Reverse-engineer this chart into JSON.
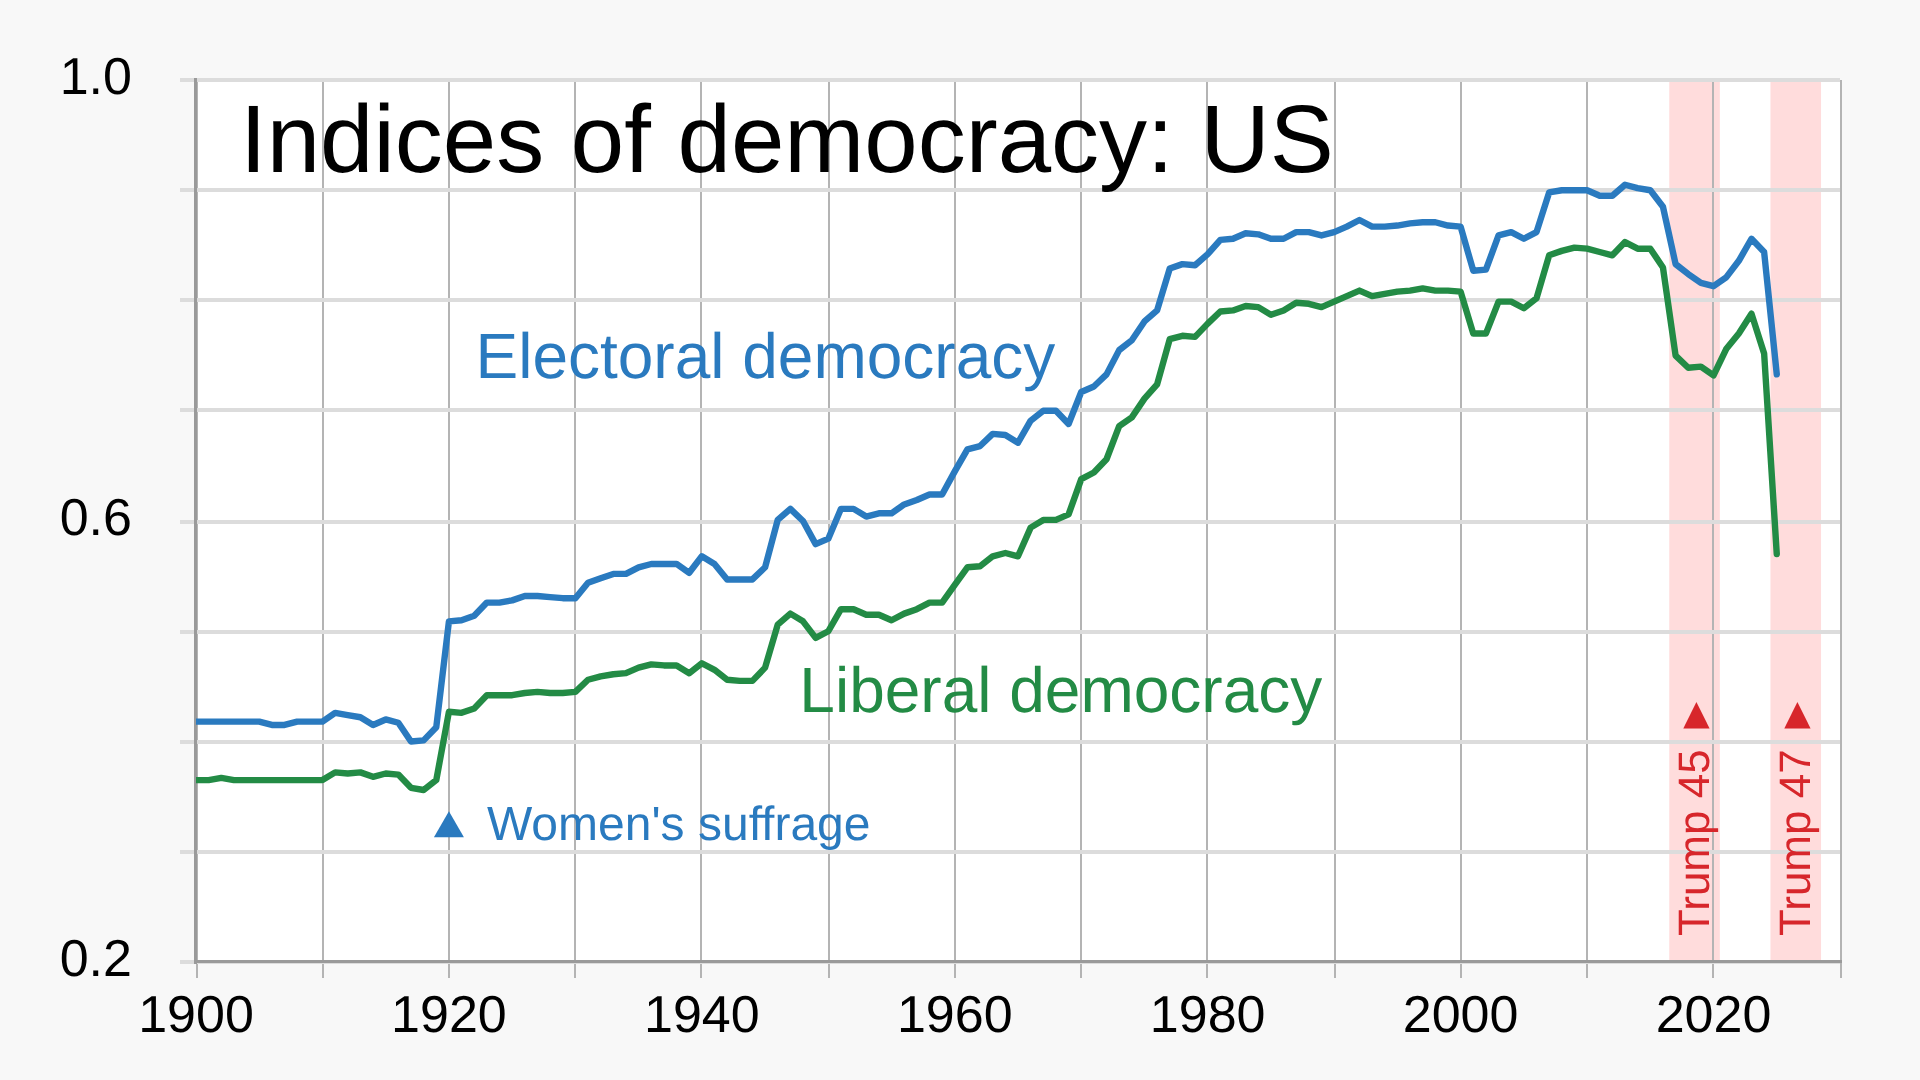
{
  "chart_data": {
    "type": "line",
    "title": "Indices of democracy: US",
    "x": [
      1900,
      1901,
      1902,
      1903,
      1904,
      1905,
      1906,
      1907,
      1908,
      1909,
      1910,
      1911,
      1912,
      1913,
      1914,
      1915,
      1916,
      1917,
      1918,
      1919,
      1920,
      1921,
      1922,
      1923,
      1924,
      1925,
      1926,
      1927,
      1928,
      1929,
      1930,
      1931,
      1932,
      1933,
      1934,
      1935,
      1936,
      1937,
      1938,
      1939,
      1940,
      1941,
      1942,
      1943,
      1944,
      1945,
      1946,
      1947,
      1948,
      1949,
      1950,
      1951,
      1952,
      1953,
      1954,
      1955,
      1956,
      1957,
      1958,
      1959,
      1960,
      1961,
      1962,
      1963,
      1964,
      1965,
      1966,
      1967,
      1968,
      1969,
      1970,
      1971,
      1972,
      1973,
      1974,
      1975,
      1976,
      1977,
      1978,
      1979,
      1980,
      1981,
      1982,
      1983,
      1984,
      1985,
      1986,
      1987,
      1988,
      1989,
      1990,
      1991,
      1992,
      1993,
      1994,
      1995,
      1996,
      1997,
      1998,
      1999,
      2000,
      2001,
      2002,
      2003,
      2004,
      2005,
      2006,
      2007,
      2008,
      2009,
      2010,
      2011,
      2012,
      2013,
      2014,
      2015,
      2016,
      2017,
      2018,
      2019,
      2020,
      2021,
      2022,
      2023,
      2024,
      2025
    ],
    "series": [
      {
        "name": "Electoral democracy",
        "color": "#2a7abf",
        "values": [
          0.418,
          0.418,
          0.418,
          0.418,
          0.418,
          0.418,
          0.415,
          0.415,
          0.418,
          0.418,
          0.418,
          0.426,
          0.424,
          0.422,
          0.415,
          0.42,
          0.417,
          0.4,
          0.401,
          0.413,
          0.509,
          0.51,
          0.514,
          0.526,
          0.526,
          0.528,
          0.532,
          0.532,
          0.531,
          0.53,
          0.53,
          0.544,
          0.548,
          0.552,
          0.552,
          0.558,
          0.561,
          0.561,
          0.561,
          0.553,
          0.568,
          0.561,
          0.547,
          0.547,
          0.547,
          0.558,
          0.601,
          0.611,
          0.6,
          0.579,
          0.584,
          0.611,
          0.611,
          0.604,
          0.607,
          0.607,
          0.615,
          0.619,
          0.624,
          0.624,
          0.645,
          0.665,
          0.668,
          0.679,
          0.678,
          0.671,
          0.691,
          0.7,
          0.7,
          0.688,
          0.717,
          0.722,
          0.733,
          0.755,
          0.764,
          0.781,
          0.791,
          0.829,
          0.833,
          0.832,
          0.842,
          0.855,
          0.856,
          0.861,
          0.86,
          0.856,
          0.856,
          0.862,
          0.862,
          0.859,
          0.862,
          0.867,
          0.873,
          0.867,
          0.867,
          0.868,
          0.87,
          0.871,
          0.871,
          0.868,
          0.867,
          0.827,
          0.828,
          0.859,
          0.862,
          0.856,
          0.862,
          0.898,
          0.9,
          0.9,
          0.9,
          0.895,
          0.895,
          0.905,
          0.902,
          0.9,
          0.885,
          0.833,
          0.824,
          0.816,
          0.813,
          0.821,
          0.836,
          0.856,
          0.844,
          0.733
        ]
      },
      {
        "name": "Liberal democracy",
        "color": "#238b45",
        "values": [
          0.365,
          0.365,
          0.367,
          0.365,
          0.365,
          0.365,
          0.365,
          0.365,
          0.365,
          0.365,
          0.365,
          0.372,
          0.371,
          0.372,
          0.368,
          0.371,
          0.37,
          0.358,
          0.356,
          0.365,
          0.427,
          0.426,
          0.43,
          0.442,
          0.442,
          0.442,
          0.444,
          0.445,
          0.444,
          0.444,
          0.445,
          0.456,
          0.459,
          0.461,
          0.462,
          0.467,
          0.47,
          0.469,
          0.469,
          0.462,
          0.471,
          0.465,
          0.456,
          0.455,
          0.455,
          0.467,
          0.506,
          0.516,
          0.509,
          0.494,
          0.5,
          0.52,
          0.52,
          0.515,
          0.515,
          0.51,
          0.516,
          0.52,
          0.526,
          0.526,
          0.542,
          0.558,
          0.559,
          0.568,
          0.571,
          0.568,
          0.594,
          0.601,
          0.601,
          0.606,
          0.638,
          0.644,
          0.656,
          0.686,
          0.694,
          0.711,
          0.724,
          0.765,
          0.768,
          0.767,
          0.779,
          0.79,
          0.791,
          0.795,
          0.794,
          0.787,
          0.791,
          0.798,
          0.797,
          0.794,
          0.799,
          0.804,
          0.809,
          0.804,
          0.806,
          0.808,
          0.809,
          0.811,
          0.809,
          0.809,
          0.808,
          0.77,
          0.77,
          0.799,
          0.799,
          0.793,
          0.802,
          0.841,
          0.845,
          0.848,
          0.847,
          0.844,
          0.841,
          0.853,
          0.847,
          0.847,
          0.83,
          0.75,
          0.739,
          0.74,
          0.732,
          0.756,
          0.77,
          0.788,
          0.752,
          0.57
        ]
      }
    ],
    "xlim": [
      1900,
      2030
    ],
    "xticks": [
      1900,
      {
        "value": 1910,
        "label": null
      },
      1920,
      {
        "value": 1930,
        "label": null
      },
      1940,
      {
        "value": 1950,
        "label": null
      },
      1960,
      {
        "value": 1970,
        "label": null
      },
      1980,
      {
        "value": 1990,
        "label": null
      },
      2000,
      {
        "value": 2010,
        "label": null
      },
      2020,
      {
        "value": 2030,
        "label": null
      }
    ],
    "ylim": [
      0.2,
      1.0
    ],
    "yticks": [
      0.2,
      {
        "value": 0.3,
        "label": null
      },
      {
        "value": 0.4,
        "label": null
      },
      {
        "value": 0.5,
        "label": null
      },
      0.6,
      {
        "value": 0.7,
        "label": null
      },
      {
        "value": 0.8,
        "label": null
      },
      {
        "value": 0.9,
        "label": null
      },
      {
        "value": 1.0,
        "label": "1.0"
      }
    ],
    "bands": [
      {
        "axis": "x",
        "from": 2016.5,
        "to": 2020.5,
        "label": "Trump 45 ►",
        "color": "#ffdcdc"
      },
      {
        "axis": "x",
        "from": 2024.5,
        "to": 2028.5,
        "label": "Trump 47 ►",
        "color": "#ffdcdc"
      }
    ],
    "annotations": [
      {
        "text": "Women's suffrage",
        "x": 1920,
        "y": 0.325
      }
    ],
    "grid": true,
    "legend": false,
    "marker": "none",
    "line_style": "solid"
  }
}
